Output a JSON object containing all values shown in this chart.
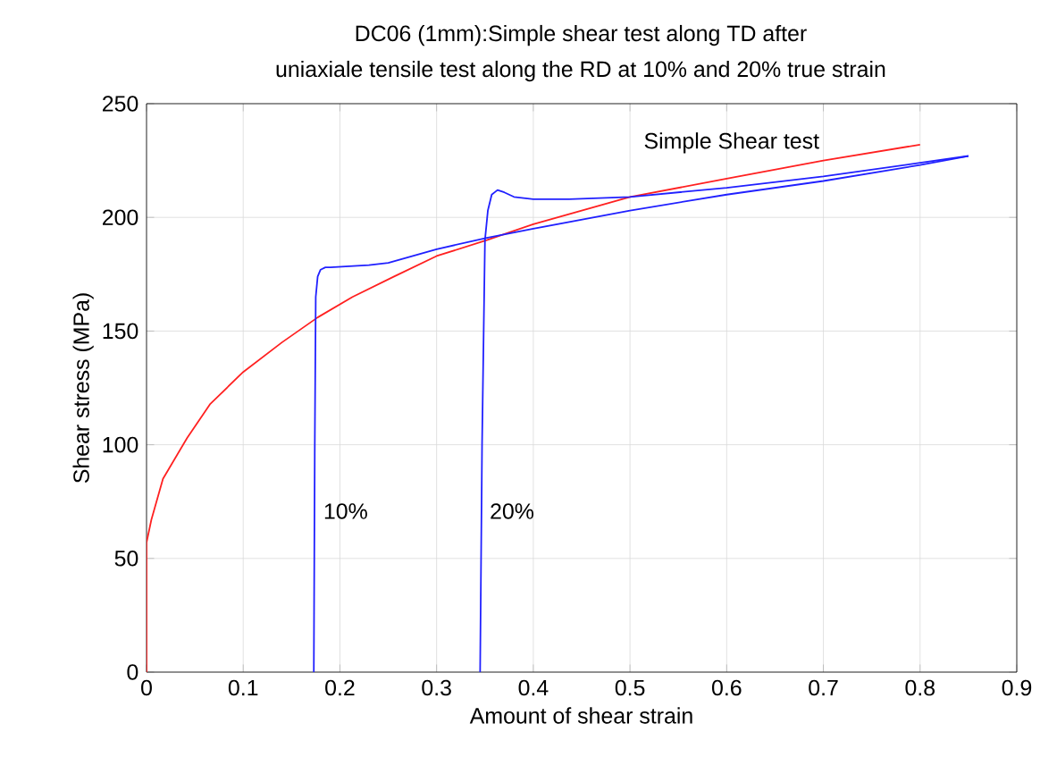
{
  "chart_data": {
    "type": "line",
    "title": "DC06 (1mm):Simple shear test along TD after",
    "subtitle": "uniaxiale tensile test along the RD at 10% and 20% true strain",
    "xlabel": "Amount of shear strain",
    "ylabel": "Shear stress (MPa)",
    "xlim": [
      0,
      0.9
    ],
    "ylim": [
      0,
      250
    ],
    "xticks": [
      0,
      0.1,
      0.2,
      0.3,
      0.4,
      0.5,
      0.6,
      0.7,
      0.8,
      0.9
    ],
    "yticks": [
      0,
      50,
      100,
      150,
      200,
      250
    ],
    "grid": true,
    "legend": false,
    "marker": "none",
    "line_style": "solid",
    "series": [
      {
        "name": "Simple Shear test",
        "color": "#ff2020",
        "x": [
          0,
          0,
          0.005,
          0.017,
          0.042,
          0.066,
          0.1,
          0.14,
          0.177,
          0.213,
          0.256,
          0.3,
          0.352,
          0.4,
          0.5,
          0.6,
          0.7,
          0.8
        ],
        "values": [
          0,
          57,
          67,
          85,
          103,
          118,
          132,
          145,
          156,
          165,
          174,
          183,
          190,
          197,
          209,
          217,
          225,
          232
        ]
      },
      {
        "name": "10%",
        "color": "#2020ff",
        "x": [
          0.173,
          0.174,
          0.175,
          0.177,
          0.18,
          0.185,
          0.19,
          0.23,
          0.25,
          0.3,
          0.352,
          0.4,
          0.5,
          0.6,
          0.7,
          0.8,
          0.85
        ],
        "values": [
          0,
          100,
          165,
          174,
          177,
          178,
          178,
          179,
          180,
          186,
          191,
          195,
          203,
          210,
          216,
          223,
          227
        ]
      },
      {
        "name": "20%",
        "color": "#2020ff",
        "x": [
          0.345,
          0.347,
          0.35,
          0.353,
          0.357,
          0.363,
          0.37,
          0.38,
          0.4,
          0.437,
          0.5,
          0.55,
          0.6,
          0.7,
          0.8,
          0.85
        ],
        "values": [
          0,
          100,
          190,
          203,
          210,
          212,
          211,
          209,
          208,
          208,
          209,
          211,
          213,
          218,
          224,
          227
        ]
      }
    ]
  }
}
